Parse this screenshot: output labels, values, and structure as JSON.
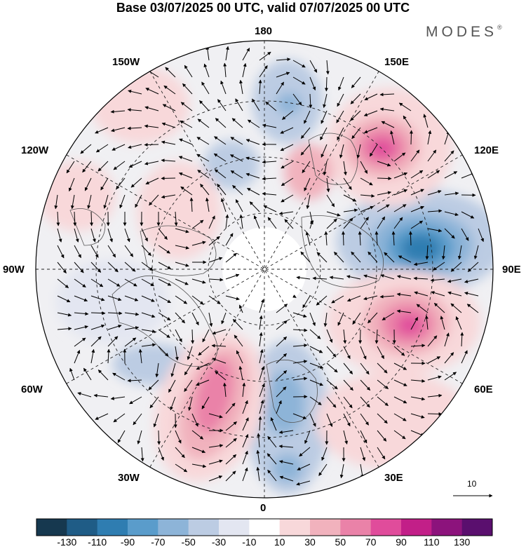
{
  "title": "Base 03/07/2025 00 UTC, valid 07/07/2025 00 UTC",
  "brand": {
    "name": "MODES",
    "mark": "®"
  },
  "map": {
    "projection": "north-polar-stereographic",
    "center": "North Pole",
    "longitude_labels": {
      "top": "180",
      "bottom": "0",
      "left": "90W",
      "right": "90E",
      "upper_left_1": "150W",
      "upper_left_2": "120W",
      "lower_left_1": "60W",
      "lower_left_2": "30W",
      "upper_right_1": "150E",
      "upper_right_2": "120E",
      "lower_right_1": "60E",
      "lower_right_2": "30E"
    },
    "anomaly_features": [
      {
        "name": "East Siberia negative center",
        "sign": "negative",
        "peak": -110
      },
      {
        "name": "Kazakhstan/Central Asia positive center",
        "sign": "positive",
        "peak": 90
      },
      {
        "name": "Far East / Kamchatka positive center",
        "sign": "positive",
        "peak": 90
      },
      {
        "name": "North Atlantic positive ridge",
        "sign": "positive",
        "peak": 90
      },
      {
        "name": "Scandinavia/Europe negative trough",
        "sign": "negative",
        "peak": -70
      },
      {
        "name": "North Pacific negative center",
        "sign": "negative",
        "peak": -50
      }
    ],
    "wind_reference": {
      "value": "10",
      "icon": "arrow-right-icon"
    }
  },
  "colorbar": {
    "ticks": [
      "-130",
      "-110",
      "-90",
      "-70",
      "-50",
      "-30",
      "-10",
      "10",
      "30",
      "50",
      "70",
      "90",
      "110",
      "130"
    ],
    "colors": [
      "#16384f",
      "#1f5c86",
      "#2f7db1",
      "#5a9ccb",
      "#8db4d8",
      "#bccce3",
      "#e3e6f1",
      "#ffffff",
      "#f8d8da",
      "#f1b2bd",
      "#ea82a8",
      "#e04c9b",
      "#c21f88",
      "#8c137c",
      "#5a0f6e"
    ]
  },
  "colors": {
    "land_gray": "#e6e6e6",
    "coast": "#555555",
    "grid": "#222222"
  }
}
